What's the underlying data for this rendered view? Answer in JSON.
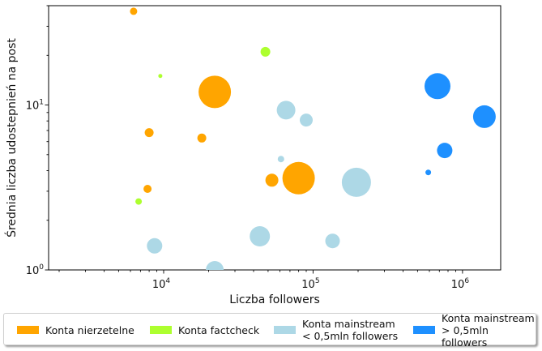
{
  "chart_data": {
    "type": "scatter",
    "title": "",
    "xlabel": "Liczba followers",
    "ylabel": "Średnia liczba udostepnień na post",
    "xscale": "log",
    "yscale": "log",
    "xlim": [
      1700,
      1800000
    ],
    "ylim": [
      1,
      40
    ],
    "x_ticks": [
      {
        "value": 10000,
        "label": "10^4"
      },
      {
        "value": 100000,
        "label": "10^5"
      },
      {
        "value": 1000000,
        "label": "10^6"
      }
    ],
    "y_ticks": [
      {
        "value": 1,
        "label": "10^0"
      },
      {
        "value": 10,
        "label": "10^1"
      }
    ],
    "grid": false,
    "legend_position": "bottom",
    "bubble_size_note": "",
    "series": [
      {
        "name": "Konta nierzetelne",
        "color": "#ffa500",
        "points": [
          {
            "x": 6300,
            "y": 37,
            "r": 4.5
          },
          {
            "x": 8000,
            "y": 6.8,
            "r": 5.5
          },
          {
            "x": 7800,
            "y": 3.1,
            "r": 5
          },
          {
            "x": 18000,
            "y": 6.3,
            "r": 5.5
          },
          {
            "x": 22000,
            "y": 12,
            "r": 20
          },
          {
            "x": 53000,
            "y": 3.5,
            "r": 8
          },
          {
            "x": 80000,
            "y": 3.6,
            "r": 20
          }
        ]
      },
      {
        "name": "Konta factcheck",
        "color": "#adff2f",
        "points": [
          {
            "x": 48000,
            "y": 21,
            "r": 6
          },
          {
            "x": 9500,
            "y": 15,
            "r": 2.5
          },
          {
            "x": 6800,
            "y": 2.6,
            "r": 4
          }
        ]
      },
      {
        "name": "Konta mainstream\n< 0,5mln followers",
        "color": "#add8e6",
        "points": [
          {
            "x": 66000,
            "y": 9.3,
            "r": 11.5
          },
          {
            "x": 90000,
            "y": 8.1,
            "r": 8
          },
          {
            "x": 61000,
            "y": 4.7,
            "r": 4
          },
          {
            "x": 195000,
            "y": 3.4,
            "r": 18
          },
          {
            "x": 44000,
            "y": 1.6,
            "r": 12.5
          },
          {
            "x": 8700,
            "y": 1.4,
            "r": 9.5
          },
          {
            "x": 135000,
            "y": 1.5,
            "r": 9
          },
          {
            "x": 22000,
            "y": 1.0,
            "r": 11
          }
        ]
      },
      {
        "name": "Konta mainstream\n> 0,5mln followers",
        "color": "#1e90ff",
        "points": [
          {
            "x": 680000,
            "y": 13,
            "r": 16
          },
          {
            "x": 1400000,
            "y": 8.5,
            "r": 14
          },
          {
            "x": 760000,
            "y": 5.3,
            "r": 9.5
          },
          {
            "x": 590000,
            "y": 3.9,
            "r": 3.5
          }
        ]
      }
    ]
  }
}
